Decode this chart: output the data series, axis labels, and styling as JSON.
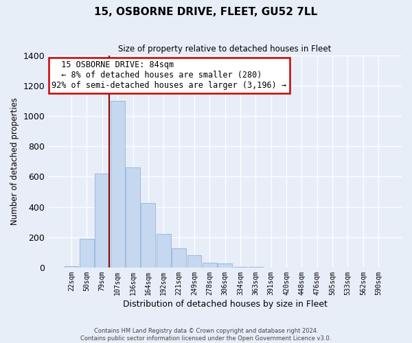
{
  "title": "15, OSBORNE DRIVE, FLEET, GU52 7LL",
  "subtitle": "Size of property relative to detached houses in Fleet",
  "xlabel": "Distribution of detached houses by size in Fleet",
  "ylabel": "Number of detached properties",
  "bar_labels": [
    "22sqm",
    "50sqm",
    "79sqm",
    "107sqm",
    "136sqm",
    "164sqm",
    "192sqm",
    "221sqm",
    "249sqm",
    "278sqm",
    "306sqm",
    "334sqm",
    "363sqm",
    "391sqm",
    "420sqm",
    "448sqm",
    "476sqm",
    "505sqm",
    "533sqm",
    "562sqm",
    "590sqm"
  ],
  "bar_values": [
    10,
    190,
    620,
    1100,
    660,
    425,
    220,
    125,
    80,
    30,
    25,
    5,
    3,
    1,
    0,
    0,
    0,
    0,
    0,
    0,
    0
  ],
  "bar_color": "#c5d8f0",
  "bar_edge_color": "#a0bedd",
  "vline_color": "#8b0000",
  "ylim": [
    0,
    1400
  ],
  "yticks": [
    0,
    200,
    400,
    600,
    800,
    1000,
    1200,
    1400
  ],
  "annotation_title": "15 OSBORNE DRIVE: 84sqm",
  "annotation_line1": "← 8% of detached houses are smaller (280)",
  "annotation_line2": "92% of semi-detached houses are larger (3,196) →",
  "annotation_box_color": "#ffffff",
  "annotation_box_edge": "#cc0000",
  "footer_line1": "Contains HM Land Registry data © Crown copyright and database right 2024.",
  "footer_line2": "Contains public sector information licensed under the Open Government Licence v3.0.",
  "background_color": "#e8eef8",
  "plot_background": "#e8eef8",
  "grid_color": "#ffffff"
}
